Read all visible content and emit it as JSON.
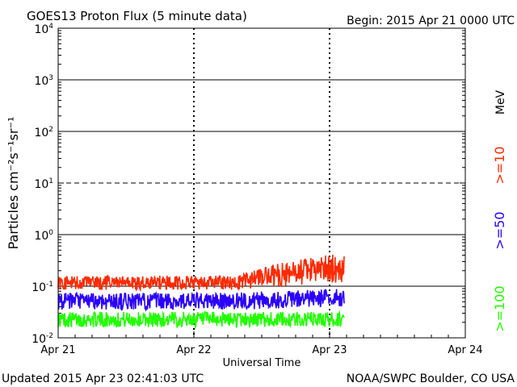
{
  "chart_data": {
    "type": "line",
    "title": "GOES13 Proton Flux (5 minute data)",
    "begin_label": "Begin: 2015 Apr 21 0000 UTC",
    "xlabel": "Universal Time",
    "ylabel": "Particles cm⁻²s⁻¹sr⁻¹",
    "x_ticks": [
      "Apr 21",
      "Apr 22",
      "Apr 23",
      "Apr 24"
    ],
    "xlim_days": [
      0,
      3
    ],
    "y_scale": "log",
    "ylim": [
      0.01,
      10000
    ],
    "y_ticks": [
      {
        "base": "10",
        "exp": "-2"
      },
      {
        "base": "10",
        "exp": "-1"
      },
      {
        "base": "10",
        "exp": "0"
      },
      {
        "base": "10",
        "exp": "1"
      },
      {
        "base": "10",
        "exp": "2"
      },
      {
        "base": "10",
        "exp": "3"
      },
      {
        "base": "10",
        "exp": "4"
      }
    ],
    "data_end_day": 2.11,
    "legend_unit": "MeV",
    "series": [
      {
        "name": ">=10",
        "color": "#ff2a00",
        "typical_low": 0.085,
        "typical_high": 0.16,
        "late_low": 0.12,
        "late_high": 0.45
      },
      {
        "name": ">=50",
        "color": "#2a00ff",
        "typical_low": 0.035,
        "typical_high": 0.075,
        "late_low": 0.04,
        "late_high": 0.09
      },
      {
        "name": ">=100",
        "color": "#22ff00",
        "typical_low": 0.016,
        "typical_high": 0.032,
        "late_low": 0.016,
        "late_high": 0.032
      }
    ]
  },
  "footer": {
    "updated": "Updated 2015 Apr 23 02:41:03 UTC",
    "credit": "NOAA/SWPC Boulder, CO USA"
  }
}
